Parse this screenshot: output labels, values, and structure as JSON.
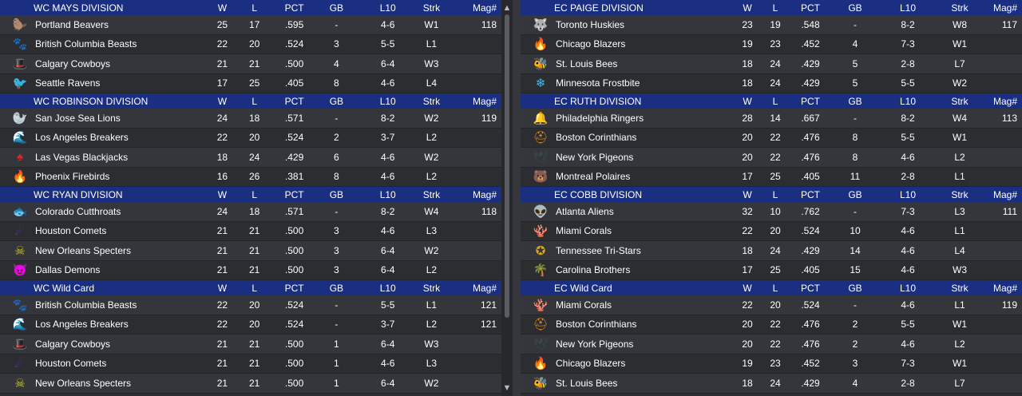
{
  "left": {
    "divisions": [
      {
        "name": "WC MAYS DIVISION",
        "teams": [
          {
            "name": "Portland Beavers",
            "logo": "beaver-icon",
            "logo_color": "#1f7a3a",
            "w": "25",
            "l": "17",
            "pct": ".595",
            "gb": "-",
            "l10": "4-6",
            "strk": "W1",
            "mag": "118"
          },
          {
            "name": "British Columbia Beasts",
            "logo": "beast-icon",
            "logo_color": "#1c4a3a",
            "w": "22",
            "l": "20",
            "pct": ".524",
            "gb": "3",
            "l10": "5-5",
            "strk": "L1",
            "mag": ""
          },
          {
            "name": "Calgary Cowboys",
            "logo": "cowboy-hat-icon",
            "logo_color": "#5a6ad8",
            "w": "21",
            "l": "21",
            "pct": ".500",
            "gb": "4",
            "l10": "6-4",
            "strk": "W3",
            "mag": ""
          },
          {
            "name": "Seattle Ravens",
            "logo": "raven-icon",
            "logo_color": "#7b3fb0",
            "w": "17",
            "l": "25",
            "pct": ".405",
            "gb": "8",
            "l10": "4-6",
            "strk": "L4",
            "mag": ""
          }
        ]
      },
      {
        "name": "WC ROBINSON DIVISION",
        "teams": [
          {
            "name": "San Jose Sea Lions",
            "logo": "sea-lion-icon",
            "logo_color": "#13203f",
            "w": "24",
            "l": "18",
            "pct": ".571",
            "gb": "-",
            "l10": "8-2",
            "strk": "W2",
            "mag": "119"
          },
          {
            "name": "Los Angeles Breakers",
            "logo": "wave-icon",
            "logo_color": "#1a8bd6",
            "w": "22",
            "l": "20",
            "pct": ".524",
            "gb": "2",
            "l10": "3-7",
            "strk": "L2",
            "mag": ""
          },
          {
            "name": "Las Vegas Blackjacks",
            "logo": "spade-icon",
            "logo_color": "#d0282e",
            "w": "18",
            "l": "24",
            "pct": ".429",
            "gb": "6",
            "l10": "4-6",
            "strk": "W2",
            "mag": ""
          },
          {
            "name": "Phoenix Firebirds",
            "logo": "firebird-icon",
            "logo_color": "#e08a2a",
            "w": "16",
            "l": "26",
            "pct": ".381",
            "gb": "8",
            "l10": "4-6",
            "strk": "L2",
            "mag": ""
          }
        ]
      },
      {
        "name": "WC RYAN DIVISION",
        "teams": [
          {
            "name": "Colorado Cutthroats",
            "logo": "trout-icon",
            "logo_color": "#7a8a3a",
            "w": "24",
            "l": "18",
            "pct": ".571",
            "gb": "-",
            "l10": "8-2",
            "strk": "W4",
            "mag": "118"
          },
          {
            "name": "Houston Comets",
            "logo": "comet-icon",
            "logo_color": "#6a3aa8",
            "w": "21",
            "l": "21",
            "pct": ".500",
            "gb": "3",
            "l10": "4-6",
            "strk": "L3",
            "mag": ""
          },
          {
            "name": "New Orleans Specters",
            "logo": "skull-icon",
            "logo_color": "#c8c228",
            "w": "21",
            "l": "21",
            "pct": ".500",
            "gb": "3",
            "l10": "6-4",
            "strk": "W2",
            "mag": ""
          },
          {
            "name": "Dallas Demons",
            "logo": "demon-icon",
            "logo_color": "#b01e1e",
            "w": "21",
            "l": "21",
            "pct": ".500",
            "gb": "3",
            "l10": "6-4",
            "strk": "L2",
            "mag": ""
          }
        ]
      },
      {
        "name": "WC  Wild Card",
        "teams": [
          {
            "name": "British Columbia Beasts",
            "logo": "beast-icon",
            "logo_color": "#1c4a3a",
            "w": "22",
            "l": "20",
            "pct": ".524",
            "gb": "-",
            "l10": "5-5",
            "strk": "L1",
            "mag": "121"
          },
          {
            "name": "Los Angeles Breakers",
            "logo": "wave-icon",
            "logo_color": "#1a8bd6",
            "w": "22",
            "l": "20",
            "pct": ".524",
            "gb": "-",
            "l10": "3-7",
            "strk": "L2",
            "mag": "121"
          },
          {
            "name": "Calgary Cowboys",
            "logo": "cowboy-hat-icon",
            "logo_color": "#5a6ad8",
            "w": "21",
            "l": "21",
            "pct": ".500",
            "gb": "1",
            "l10": "6-4",
            "strk": "W3",
            "mag": ""
          },
          {
            "name": "Houston Comets",
            "logo": "comet-icon",
            "logo_color": "#6a3aa8",
            "w": "21",
            "l": "21",
            "pct": ".500",
            "gb": "1",
            "l10": "4-6",
            "strk": "L3",
            "mag": ""
          },
          {
            "name": "New Orleans Specters",
            "logo": "skull-icon",
            "logo_color": "#c8c228",
            "w": "21",
            "l": "21",
            "pct": ".500",
            "gb": "1",
            "l10": "6-4",
            "strk": "W2",
            "mag": ""
          }
        ]
      }
    ]
  },
  "right": {
    "divisions": [
      {
        "name": "EC PAIGE DIVISION",
        "teams": [
          {
            "name": "Toronto Huskies",
            "logo": "husky-icon",
            "logo_color": "#9aa0a8",
            "w": "23",
            "l": "19",
            "pct": ".548",
            "gb": "-",
            "l10": "8-2",
            "strk": "W8",
            "mag": "117"
          },
          {
            "name": "Chicago Blazers",
            "logo": "flame-icon",
            "logo_color": "#e0521e",
            "w": "19",
            "l": "23",
            "pct": ".452",
            "gb": "4",
            "l10": "7-3",
            "strk": "W1",
            "mag": ""
          },
          {
            "name": "St. Louis Bees",
            "logo": "bee-icon",
            "logo_color": "#c02050",
            "w": "18",
            "l": "24",
            "pct": ".429",
            "gb": "5",
            "l10": "2-8",
            "strk": "L7",
            "mag": ""
          },
          {
            "name": "Minnesota Frostbite",
            "logo": "snowflake-icon",
            "logo_color": "#4ab8e8",
            "w": "18",
            "l": "24",
            "pct": ".429",
            "gb": "5",
            "l10": "5-5",
            "strk": "W2",
            "mag": ""
          }
        ]
      },
      {
        "name": "EC RUTH DIVISION",
        "teams": [
          {
            "name": "Philadelphia Ringers",
            "logo": "bell-icon",
            "logo_color": "#c8902a",
            "w": "28",
            "l": "14",
            "pct": ".667",
            "gb": "-",
            "l10": "8-2",
            "strk": "W4",
            "mag": "113"
          },
          {
            "name": "Boston Corinthians",
            "logo": "helmet-icon",
            "logo_color": "#e08a20",
            "w": "20",
            "l": "22",
            "pct": ".476",
            "gb": "8",
            "l10": "5-5",
            "strk": "W1",
            "mag": ""
          },
          {
            "name": "New York Pigeons",
            "logo": "pigeon-icon",
            "logo_color": "#3a4a48",
            "w": "20",
            "l": "22",
            "pct": ".476",
            "gb": "8",
            "l10": "4-6",
            "strk": "L2",
            "mag": ""
          },
          {
            "name": "Montreal Polaires",
            "logo": "polar-bear-icon",
            "logo_color": "#2a8ad8",
            "w": "17",
            "l": "25",
            "pct": ".405",
            "gb": "11",
            "l10": "2-8",
            "strk": "L1",
            "mag": ""
          }
        ]
      },
      {
        "name": "EC COBB DIVISION",
        "teams": [
          {
            "name": "Atlanta Aliens",
            "logo": "alien-icon",
            "logo_color": "#3ac83a",
            "w": "32",
            "l": "10",
            "pct": ".762",
            "gb": "-",
            "l10": "7-3",
            "strk": "L3",
            "mag": "111"
          },
          {
            "name": "Miami Corals",
            "logo": "coral-icon",
            "logo_color": "#e07050",
            "w": "22",
            "l": "20",
            "pct": ".524",
            "gb": "10",
            "l10": "4-6",
            "strk": "L1",
            "mag": ""
          },
          {
            "name": "Tennessee Tri-Stars",
            "logo": "tri-star-icon",
            "logo_color": "#d8a81e",
            "w": "18",
            "l": "24",
            "pct": ".429",
            "gb": "14",
            "l10": "4-6",
            "strk": "L4",
            "mag": ""
          },
          {
            "name": "Carolina Brothers",
            "logo": "carolina-icon",
            "logo_color": "#2aa8c8",
            "w": "17",
            "l": "25",
            "pct": ".405",
            "gb": "15",
            "l10": "4-6",
            "strk": "W3",
            "mag": ""
          }
        ]
      },
      {
        "name": "EC  Wild Card",
        "teams": [
          {
            "name": "Miami Corals",
            "logo": "coral-icon",
            "logo_color": "#e07050",
            "w": "22",
            "l": "20",
            "pct": ".524",
            "gb": "-",
            "l10": "4-6",
            "strk": "L1",
            "mag": "119"
          },
          {
            "name": "Boston Corinthians",
            "logo": "helmet-icon",
            "logo_color": "#e08a20",
            "w": "20",
            "l": "22",
            "pct": ".476",
            "gb": "2",
            "l10": "5-5",
            "strk": "W1",
            "mag": ""
          },
          {
            "name": "New York Pigeons",
            "logo": "pigeon-icon",
            "logo_color": "#3a4a48",
            "w": "20",
            "l": "22",
            "pct": ".476",
            "gb": "2",
            "l10": "4-6",
            "strk": "L2",
            "mag": ""
          },
          {
            "name": "Chicago Blazers",
            "logo": "flame-icon",
            "logo_color": "#e0521e",
            "w": "19",
            "l": "23",
            "pct": ".452",
            "gb": "3",
            "l10": "7-3",
            "strk": "W1",
            "mag": ""
          },
          {
            "name": "St. Louis Bees",
            "logo": "bee-icon",
            "logo_color": "#c02050",
            "w": "18",
            "l": "24",
            "pct": ".429",
            "gb": "4",
            "l10": "2-8",
            "strk": "L7",
            "mag": ""
          }
        ]
      }
    ]
  },
  "columns": {
    "w": "W",
    "l": "L",
    "pct": "PCT",
    "gb": "GB",
    "l10": "L10",
    "strk": "Strk",
    "mag": "Mag#"
  },
  "colors": {
    "header_bg": "#1b2f82",
    "row_odd": "#34363b",
    "row_even": "#2b2d31"
  }
}
